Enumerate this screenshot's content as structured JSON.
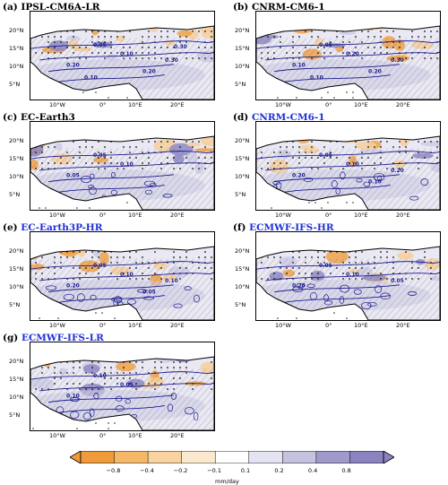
{
  "colors": {
    "black_title": "#000000",
    "blue_title": "#1f2fd6",
    "contour": "#1a1a8c",
    "positive_strong": "#8f8ac4",
    "positive_light": "#cfcde6",
    "negative_strong": "#f0a24a",
    "negative_light": "#f6cf9c"
  },
  "panels": [
    {
      "letter": "(a)",
      "model": "IPSL-CM6A-LR",
      "title_color": "#000000",
      "contour_labels": [
        "0.05",
        "0.10",
        "0.20",
        "0.30",
        "0.20",
        "0.10",
        "0.30"
      ]
    },
    {
      "letter": "(b)",
      "model": "CNRM-CM6-1",
      "title_color": "#000000",
      "contour_labels": [
        "0.05",
        "0.20",
        "0.10",
        "0.30",
        "0.20",
        "0.10"
      ]
    },
    {
      "letter": "(c)",
      "model": "EC-Earth3",
      "title_color": "#000000",
      "contour_labels": [
        "0.05",
        "0.10",
        "0.05"
      ]
    },
    {
      "letter": "(d)",
      "model": "CNRM-CM6-1",
      "title_color": "#1f2fd6",
      "contour_labels": [
        "0.05",
        "0.10",
        "0.20",
        "0.20",
        "0.10"
      ]
    },
    {
      "letter": "(e)",
      "model": "EC-Earth3P-HR",
      "title_color": "#1f2fd6",
      "contour_labels": [
        "0.05",
        "0.10",
        "0.20",
        "0.10",
        "0.05"
      ]
    },
    {
      "letter": "(f)",
      "model": "ECMWF-IFS-HR",
      "title_color": "#1f2fd6",
      "contour_labels": [
        "0.05",
        "0.10",
        "0.20",
        "0.05"
      ]
    },
    {
      "letter": "(g)",
      "model": "ECMWF-IFS-LR",
      "title_color": "#1f2fd6",
      "contour_labels": [
        "0.10",
        "0.05",
        "0.10"
      ]
    }
  ],
  "axes": {
    "lat_ticks": [
      "20°N",
      "15°N",
      "10°N",
      "5°N"
    ],
    "lon_ticks": [
      "10°W",
      "0°",
      "10°E",
      "20°E"
    ]
  },
  "colorbar": {
    "ticks": [
      "−0.8",
      "−0.4",
      "−0.2",
      "−0.1",
      "0.1",
      "0.2",
      "0.4",
      "0.8"
    ],
    "unit": "mm/day",
    "colors": [
      "#ef9b3c",
      "#f5b868",
      "#f8d39d",
      "#fbe9cf",
      "#ffffff",
      "#e4e3f1",
      "#c5c2e0",
      "#9f9acc",
      "#8a83c0"
    ]
  }
}
